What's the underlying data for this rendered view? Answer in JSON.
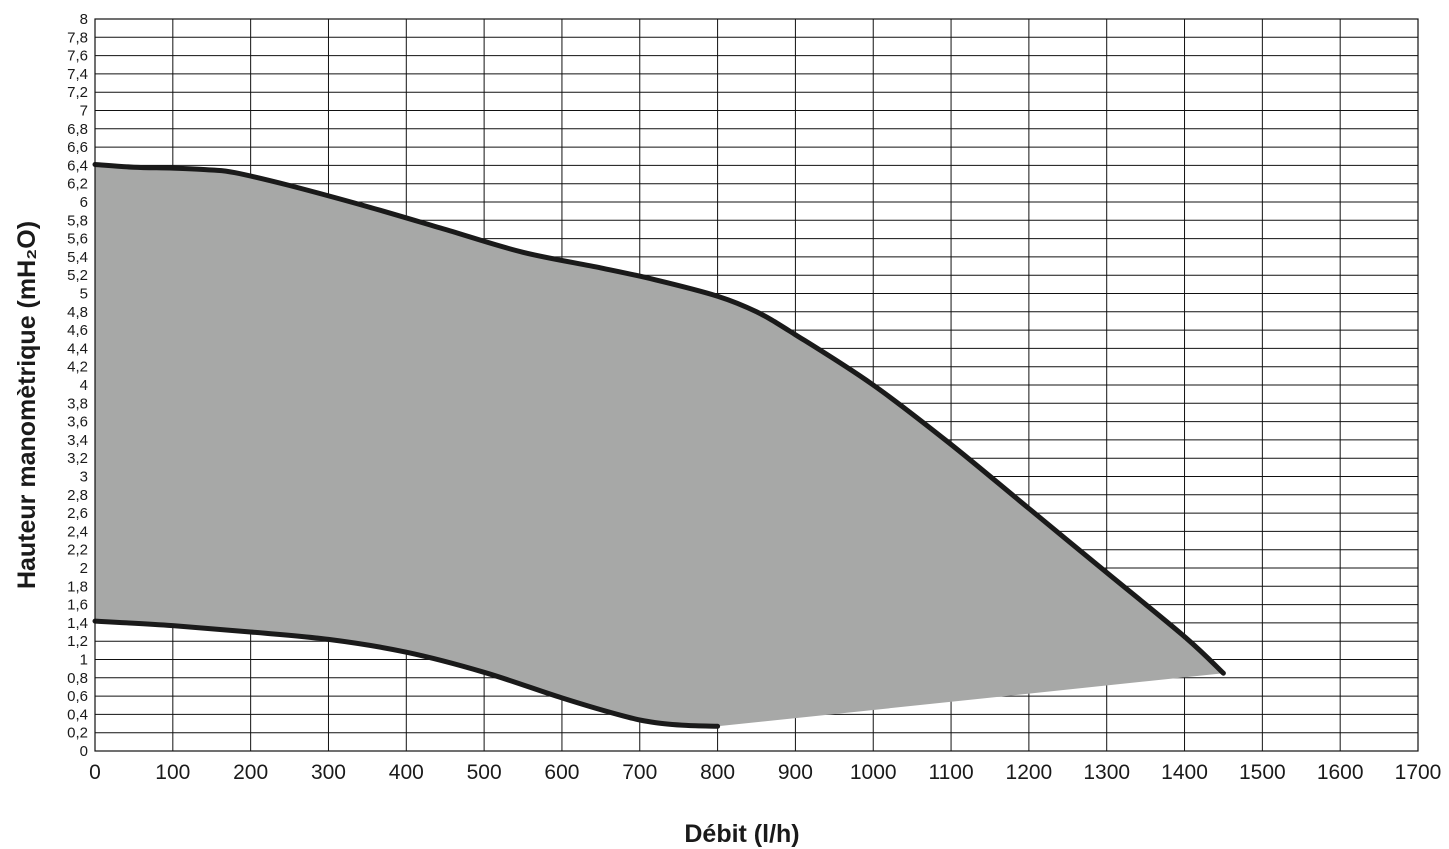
{
  "chart_data": {
    "type": "area",
    "xlabel": "Débit (l/h)",
    "ylabel": "Hauteur manomètrique (mH₂O)",
    "xlim": [
      0,
      1700
    ],
    "ylim": [
      0,
      8
    ],
    "x_ticks": [
      "0",
      "100",
      "200",
      "300",
      "400",
      "500",
      "600",
      "700",
      "800",
      "900",
      "1000",
      "1100",
      "1200",
      "1300",
      "1400",
      "1500",
      "1600",
      "1700"
    ],
    "y_ticks": [
      "0",
      "0,2",
      "0,4",
      "0,6",
      "0,8",
      "1",
      "1,2",
      "1,4",
      "1,6",
      "1,8",
      "2",
      "2,2",
      "2,4",
      "2,6",
      "2,8",
      "3",
      "3,2",
      "3,4",
      "3,6",
      "3,8",
      "4",
      "4,2",
      "4,4",
      "4,6",
      "4,8",
      "5",
      "5,2",
      "5,4",
      "5,6",
      "5,8",
      "6",
      "6,2",
      "6,4",
      "6,6",
      "6,8",
      "7",
      "7,2",
      "7,4",
      "7,6",
      "7,8",
      "8"
    ],
    "grid": true,
    "series": [
      {
        "role": "upper-curve",
        "x": [
          0,
          50,
          100,
          150,
          180,
          250,
          350,
          450,
          550,
          650,
          720,
          800,
          850,
          900,
          1000,
          1100,
          1200,
          1300,
          1400,
          1450
        ],
        "y": [
          6.41,
          6.38,
          6.37,
          6.35,
          6.32,
          6.18,
          5.95,
          5.7,
          5.45,
          5.28,
          5.15,
          4.97,
          4.8,
          4.55,
          4.0,
          3.35,
          2.65,
          1.95,
          1.25,
          0.85
        ]
      },
      {
        "role": "lower-curve",
        "x": [
          0,
          100,
          200,
          300,
          400,
          500,
          600,
          680,
          720,
          760,
          800
        ],
        "y": [
          1.42,
          1.37,
          1.3,
          1.22,
          1.08,
          0.86,
          0.58,
          0.38,
          0.31,
          0.28,
          0.27
        ]
      },
      {
        "role": "closing-edge",
        "x": [
          800,
          1450
        ],
        "y": [
          0.27,
          0.85
        ]
      }
    ],
    "fill_color": "#a7a8a7",
    "curve_color": "#1a1a1a",
    "grid_color": "#111111"
  }
}
